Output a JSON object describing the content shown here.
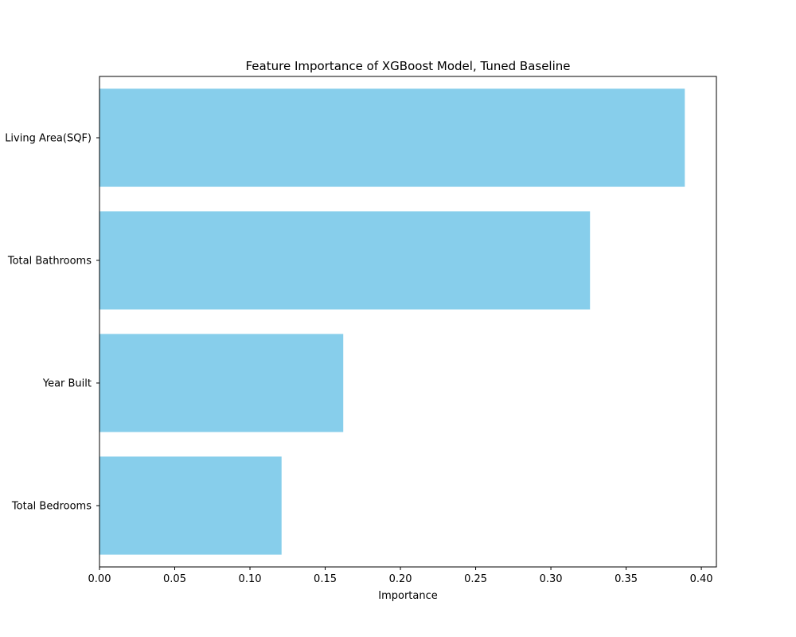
{
  "chart_data": {
    "type": "bar",
    "orientation": "horizontal",
    "title": "Feature Importance of XGBoost Model, Tuned Baseline",
    "xlabel": "Importance",
    "ylabel": "",
    "categories": [
      "Living Area(SQF)",
      "Total Bathrooms",
      "Year Built",
      "Total Bedrooms"
    ],
    "values": [
      0.389,
      0.326,
      0.162,
      0.121
    ],
    "xlim": [
      0.0,
      0.41
    ],
    "xticks": [
      "0.00",
      "0.05",
      "0.10",
      "0.15",
      "0.20",
      "0.25",
      "0.30",
      "0.35",
      "0.40"
    ],
    "bar_color": "#87CEEB",
    "grid": false,
    "legend": "none"
  }
}
